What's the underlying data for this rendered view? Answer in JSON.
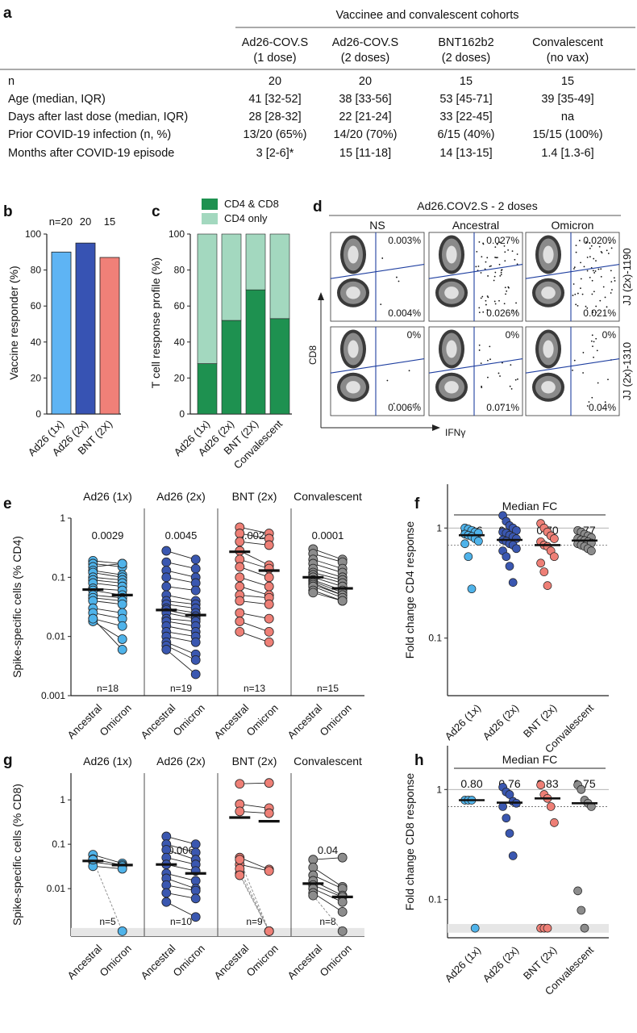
{
  "colors": {
    "ad1": "#4fb3ea",
    "ad2": "#3a57b0",
    "bnt": "#ee7f76",
    "conv": "#8c8c8c",
    "cd4cd8": "#1e9150",
    "cd4only": "#a3d8bf",
    "bar_ad1": "#5eb4f4",
    "bar_ad2": "#3753b3",
    "bar_bnt": "#f08078",
    "flow_blue": "#1f3fa0"
  },
  "panel_a": {
    "letter": "a",
    "header": "Vaccinee and convalescent cohorts",
    "columns": [
      {
        "l1": "Ad26-COV.S",
        "l2": "(1 dose)",
        "key": "ad1"
      },
      {
        "l1": "Ad26-COV.S",
        "l2": "(2 doses)",
        "key": "ad2"
      },
      {
        "l1": "BNT162b2",
        "l2": "(2 doses)",
        "key": "bnt"
      },
      {
        "l1": "Convalescent",
        "l2": "(no vax)",
        "key": "conv"
      }
    ],
    "rows": [
      {
        "label": "n",
        "values": [
          "20",
          "20",
          "15",
          "15"
        ]
      },
      {
        "label": "Age (median, IQR)",
        "values": [
          "41 [32-52]",
          "38 [33-56]",
          "53 [45-71]",
          "39 [35-49]"
        ]
      },
      {
        "label": "Days after last dose (median, IQR)",
        "values": [
          "28 [28-32]",
          "22 [21-24]",
          "33 [22-45]",
          "na"
        ]
      },
      {
        "label": "Prior COVID-19 infection (n, %)",
        "values": [
          "13/20 (65%)",
          "14/20 (70%)",
          "6/15 (40%)",
          "15/15 (100%)"
        ]
      },
      {
        "label": "Months after COVID-19 episode",
        "values": [
          "3 [2-6]*",
          "15 [11-18]",
          "14 [13-15]",
          "1.4 [1.3-6]"
        ]
      }
    ]
  },
  "chart_data": [
    {
      "panel": "b",
      "type": "bar",
      "ylabel": "Vaccine responder (%)",
      "ylim": [
        0,
        100
      ],
      "yticks": [
        "0",
        "20",
        "40",
        "60",
        "80",
        "100"
      ],
      "categories": [
        "Ad26 (1x)",
        "Ad26 (2x)",
        "BNT (2X)"
      ],
      "values": [
        90,
        95,
        87
      ],
      "n_labels": [
        "n=20",
        "20",
        "15"
      ]
    },
    {
      "panel": "c",
      "type": "bar",
      "ylabel": "T cell response profile (%)",
      "ylim": [
        0,
        100
      ],
      "yticks": [
        "0",
        "20",
        "40",
        "60",
        "80",
        "100"
      ],
      "categories": [
        "Ad26 (1x)",
        "Ad26 (2x)",
        "BNT (2X)",
        "Convalescent"
      ],
      "series": [
        {
          "name": "CD4 & CD8",
          "values": [
            28,
            52,
            69,
            53
          ]
        },
        {
          "name": "CD4 only",
          "values": [
            72,
            48,
            31,
            47
          ]
        }
      ]
    },
    {
      "panel": "d",
      "type": "scatter",
      "title": "Ad26.COV2.S - 2 doses",
      "columns": [
        "NS",
        "Ancestral",
        "Omicron"
      ],
      "rows": [
        "JJ (2x)-1190",
        "JJ (2x)-1310"
      ],
      "xlabel": "IFNγ",
      "ylabel": "CD8",
      "quadrant_values": [
        {
          "upper": [
            "0.003%",
            "0.027%",
            "0.020%"
          ],
          "lower": [
            "0.004%",
            "0.026%",
            "0.021%"
          ]
        },
        {
          "upper": [
            "0%",
            "0%",
            "0%"
          ],
          "lower": [
            "0.006%",
            "0.071%",
            "0.04%"
          ]
        }
      ]
    },
    {
      "panel": "e",
      "type": "scatter",
      "ylabel": "Spike-specific cells (% CD4)",
      "yscale": "log",
      "ylim": [
        0.001,
        1
      ],
      "yticks": [
        "0.001",
        "0.01",
        "0.1",
        "1"
      ],
      "x_categories": [
        "Ancestral",
        "Omicron"
      ],
      "groups": [
        {
          "name": "Ad26 (1x)",
          "p": "0.0029",
          "n": "n=18",
          "median": [
            0.062,
            0.05
          ],
          "pairs": [
            [
              0.19,
              0.17
            ],
            [
              0.17,
              0.15
            ],
            [
              0.15,
              0.17
            ],
            [
              0.13,
              0.11
            ],
            [
              0.12,
              0.1
            ],
            [
              0.1,
              0.09
            ],
            [
              0.09,
              0.08
            ],
            [
              0.08,
              0.07
            ],
            [
              0.065,
              0.06
            ],
            [
              0.06,
              0.05
            ],
            [
              0.05,
              0.045
            ],
            [
              0.045,
              0.04
            ],
            [
              0.04,
              0.035
            ],
            [
              0.03,
              0.025
            ],
            [
              0.025,
              0.02
            ],
            [
              0.02,
              0.015
            ],
            [
              0.018,
              0.009
            ],
            [
              0.02,
              0.006
            ]
          ]
        },
        {
          "name": "Ad26 (2x)",
          "p": "0.0045",
          "n": "n=19",
          "median": [
            0.028,
            0.023
          ],
          "pairs": [
            [
              0.28,
              0.2
            ],
            [
              0.18,
              0.14
            ],
            [
              0.13,
              0.1
            ],
            [
              0.1,
              0.08
            ],
            [
              0.07,
              0.06
            ],
            [
              0.05,
              0.04
            ],
            [
              0.04,
              0.035
            ],
            [
              0.035,
              0.03
            ],
            [
              0.03,
              0.025
            ],
            [
              0.028,
              0.022
            ],
            [
              0.025,
              0.02
            ],
            [
              0.02,
              0.018
            ],
            [
              0.018,
              0.015
            ],
            [
              0.015,
              0.012
            ],
            [
              0.012,
              0.01
            ],
            [
              0.01,
              0.008
            ],
            [
              0.008,
              0.005
            ],
            [
              0.007,
              0.004
            ],
            [
              0.006,
              0.0023
            ]
          ]
        },
        {
          "name": "BNT (2x)",
          "p": "0.0024",
          "n": "n=13",
          "median": [
            0.27,
            0.13
          ],
          "pairs": [
            [
              0.7,
              0.55
            ],
            [
              0.55,
              0.45
            ],
            [
              0.4,
              0.35
            ],
            [
              0.28,
              0.16
            ],
            [
              0.2,
              0.14
            ],
            [
              0.15,
              0.1
            ],
            [
              0.1,
              0.07
            ],
            [
              0.07,
              0.05
            ],
            [
              0.05,
              0.045
            ],
            [
              0.04,
              0.035
            ],
            [
              0.025,
              0.02
            ],
            [
              0.018,
              0.012
            ],
            [
              0.012,
              0.008
            ]
          ]
        },
        {
          "name": "Convalescent",
          "p": "0.0001",
          "n": "n=15",
          "median": [
            0.1,
            0.065
          ],
          "pairs": [
            [
              0.3,
              0.2
            ],
            [
              0.25,
              0.18
            ],
            [
              0.2,
              0.14
            ],
            [
              0.17,
              0.12
            ],
            [
              0.14,
              0.1
            ],
            [
              0.12,
              0.09
            ],
            [
              0.11,
              0.08
            ],
            [
              0.1,
              0.07
            ],
            [
              0.09,
              0.06
            ],
            [
              0.085,
              0.055
            ],
            [
              0.08,
              0.05
            ],
            [
              0.075,
              0.05
            ],
            [
              0.07,
              0.045
            ],
            [
              0.06,
              0.04
            ],
            [
              0.055,
              0.04
            ]
          ]
        }
      ]
    },
    {
      "panel": "f",
      "type": "scatter",
      "title": "Median FC",
      "ylabel": "Fold change CD4 response",
      "yscale": "log",
      "ylim": [
        0.03,
        2.5
      ],
      "yticks": [
        "0.1",
        "1"
      ],
      "categories": [
        "Ad26 (1x)",
        "Ad26 (2x)",
        "BNT (2x)",
        "Convalescent"
      ],
      "medians": [
        "0.86",
        "0.78",
        "0.70",
        "0.77"
      ],
      "median_values": [
        0.86,
        0.78,
        0.7,
        0.77
      ],
      "points": [
        [
          1.0,
          0.98,
          0.95,
          0.92,
          0.9,
          0.88,
          0.86,
          0.84,
          0.8,
          0.76,
          0.72,
          0.55,
          0.28
        ],
        [
          1.3,
          1.15,
          1.05,
          1.0,
          0.95,
          0.92,
          0.9,
          0.86,
          0.83,
          0.8,
          0.78,
          0.76,
          0.72,
          0.7,
          0.65,
          0.62,
          0.55,
          0.45,
          0.32
        ],
        [
          1.1,
          1.0,
          0.92,
          0.85,
          0.8,
          0.75,
          0.7,
          0.68,
          0.62,
          0.55,
          0.48,
          0.4,
          0.3
        ],
        [
          0.95,
          0.92,
          0.88,
          0.85,
          0.82,
          0.8,
          0.78,
          0.77,
          0.75,
          0.73,
          0.72,
          0.7,
          0.68,
          0.65,
          0.62
        ]
      ]
    },
    {
      "panel": "g",
      "type": "scatter",
      "ylabel": "Spike-specific cells (% CD8)",
      "yscale": "log",
      "ylim": [
        0.00085,
        4
      ],
      "yticks": [
        "0.01",
        "0.1",
        "1"
      ],
      "x_categories": [
        "Ancestral",
        "Omicron"
      ],
      "groups": [
        {
          "name": "Ad26 (1x)",
          "p": "",
          "n": "n=5",
          "median": [
            0.042,
            0.034
          ],
          "pairs": [
            [
              0.058,
              0.037
            ],
            [
              0.046,
              0.034
            ],
            [
              0.04,
              0.032
            ],
            [
              0.032,
              0.028
            ],
            [
              0.045,
              0.0011
            ]
          ]
        },
        {
          "name": "Ad26 (2x)",
          "p": "0.006",
          "n": "n=10",
          "median": [
            0.035,
            0.022
          ],
          "pairs": [
            [
              0.15,
              0.1
            ],
            [
              0.1,
              0.065
            ],
            [
              0.075,
              0.045
            ],
            [
              0.05,
              0.035
            ],
            [
              0.035,
              0.025
            ],
            [
              0.022,
              0.015
            ],
            [
              0.017,
              0.01
            ],
            [
              0.012,
              0.009
            ],
            [
              0.008,
              0.006
            ],
            [
              0.005,
              0.0023
            ]
          ]
        },
        {
          "name": "BNT (2x)",
          "p": "",
          "n": "n=9",
          "median": [
            0.4,
            0.33
          ],
          "pairs": [
            [
              2.3,
              2.4
            ],
            [
              0.8,
              0.65
            ],
            [
              0.55,
              0.5
            ],
            [
              0.05,
              0.027
            ],
            [
              0.035,
              0.025
            ],
            [
              0.022,
              0.0011
            ],
            [
              0.028,
              0.0011
            ],
            [
              0.02,
              0.0011
            ],
            [
              0.045,
              0.0011
            ]
          ]
        },
        {
          "name": "Convalescent",
          "p": "0.04",
          "n": "n=8",
          "median": [
            0.013,
            0.0065
          ],
          "pairs": [
            [
              0.045,
              0.05
            ],
            [
              0.03,
              0.011
            ],
            [
              0.02,
              0.01
            ],
            [
              0.015,
              0.007
            ],
            [
              0.012,
              0.0065
            ],
            [
              0.01,
              0.005
            ],
            [
              0.008,
              0.003
            ],
            [
              0.007,
              0.0011
            ]
          ]
        }
      ]
    },
    {
      "panel": "h",
      "type": "scatter",
      "title": "Median FC",
      "ylabel": "Fold change CD8 response",
      "yscale": "log",
      "ylim": [
        0.045,
        2.5
      ],
      "yticks": [
        "0.1",
        "1"
      ],
      "categories": [
        "Ad26 (1x)",
        "Ad26 (2x)",
        "BNT (2x)",
        "Convalescent"
      ],
      "medians": [
        "0.80",
        "0.76",
        "0.83",
        "0.75"
      ],
      "median_values": [
        0.8,
        0.76,
        0.83,
        0.75
      ],
      "points": [
        [
          0.8,
          0.8,
          0.8,
          0.055
        ],
        [
          1.05,
          0.95,
          0.9,
          0.78,
          0.75,
          0.7,
          0.55,
          0.4,
          0.25
        ],
        [
          1.1,
          0.9,
          0.83,
          0.7,
          0.5,
          0.055,
          0.055,
          0.055
        ],
        [
          1.1,
          1.0,
          0.8,
          0.75,
          0.7,
          0.12,
          0.08,
          0.055
        ]
      ]
    }
  ]
}
